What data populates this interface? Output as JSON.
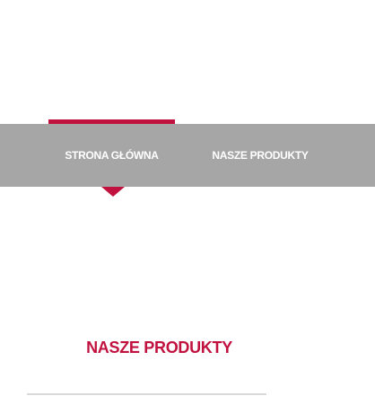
{
  "nav": {
    "items": [
      {
        "label": "STRONA GŁÓWNA",
        "active": true
      },
      {
        "label": "NASZE PRODUKTY",
        "active": false
      }
    ]
  },
  "main": {
    "section_title": "NASZE PRODUKTY"
  },
  "colors": {
    "accent": "#c1123f",
    "nav_background": "#a6a6a6",
    "nav_text": "#ffffff",
    "divider": "#d9d9d9"
  }
}
